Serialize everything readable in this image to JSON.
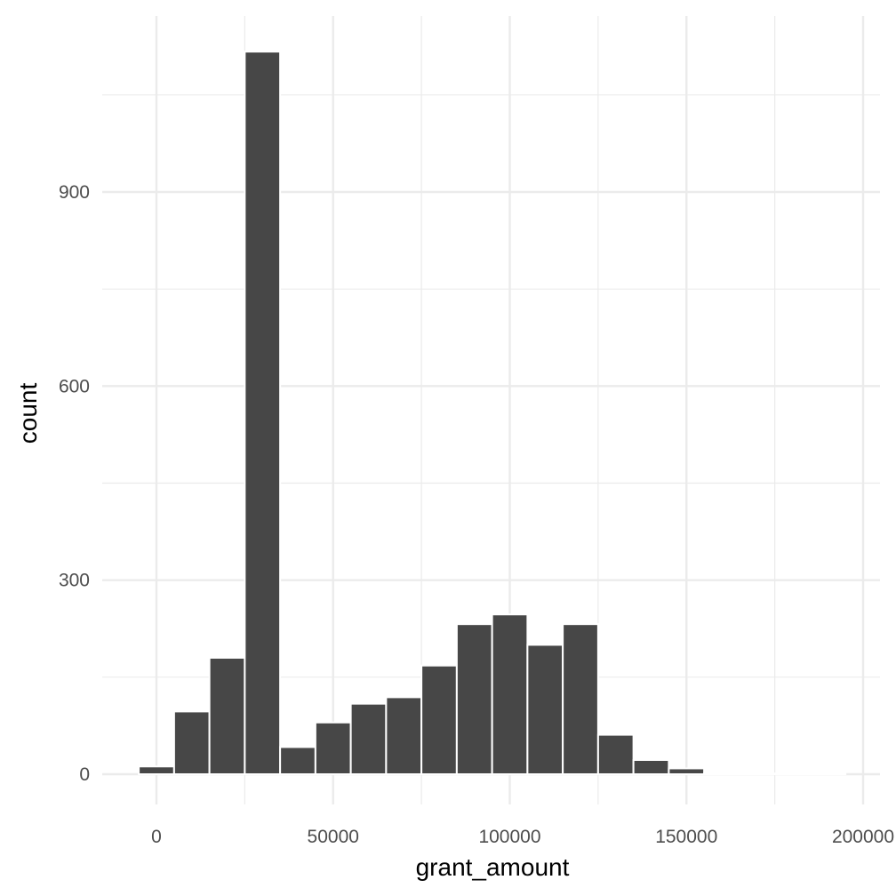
{
  "chart_data": {
    "type": "bar",
    "histogram": true,
    "bin_width": 10000,
    "bins": [
      {
        "center": 0,
        "count": 12
      },
      {
        "center": 10000,
        "count": 97
      },
      {
        "center": 20000,
        "count": 180
      },
      {
        "center": 30000,
        "count": 1117
      },
      {
        "center": 40000,
        "count": 42
      },
      {
        "center": 50000,
        "count": 80
      },
      {
        "center": 60000,
        "count": 109
      },
      {
        "center": 70000,
        "count": 119
      },
      {
        "center": 80000,
        "count": 168
      },
      {
        "center": 90000,
        "count": 232
      },
      {
        "center": 100000,
        "count": 247
      },
      {
        "center": 110000,
        "count": 200
      },
      {
        "center": 120000,
        "count": 232
      },
      {
        "center": 130000,
        "count": 61
      },
      {
        "center": 140000,
        "count": 22
      },
      {
        "center": 150000,
        "count": 9
      },
      {
        "center": 160000,
        "count": 1
      },
      {
        "center": 170000,
        "count": 1
      },
      {
        "center": 180000,
        "count": 1
      },
      {
        "center": 190000,
        "count": 1
      }
    ],
    "xlabel": "grant_amount",
    "ylabel": "count",
    "xlim": [
      -15000,
      200000
    ],
    "ylim": [
      -50,
      1117
    ],
    "x_ticks": [
      0,
      50000,
      100000,
      150000,
      200000
    ],
    "x_tick_labels": [
      "0",
      "50000",
      "100000",
      "150000",
      "200000"
    ],
    "y_ticks": [
      0,
      300,
      600,
      900
    ],
    "y_tick_labels": [
      "0",
      "300",
      "600",
      "900"
    ],
    "grid": true,
    "bar_color": "#474747",
    "bar_outline": "#ffffff",
    "grid_color": "#ebebeb"
  }
}
